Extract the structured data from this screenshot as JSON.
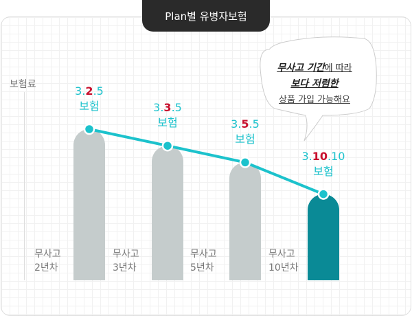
{
  "title": "Plan별 유병자보험",
  "ylabel": "보험료",
  "callout": {
    "line1_bold": "무사고 기간",
    "line1_rest": "에 따라",
    "line2": "보다 저렴한",
    "line3": "상품 가입 가능해요"
  },
  "colors": {
    "accent": "#1cc2cc",
    "highlight": "#c8102e",
    "bar": "#c5cccc",
    "bar_highlight": "#0a8a96"
  },
  "chart_data": {
    "type": "bar",
    "categories": [
      {
        "line1": "무사고",
        "line2": "2년차"
      },
      {
        "line1": "무사고",
        "line2": "3년차"
      },
      {
        "line1": "무사고",
        "line2": "5년차"
      },
      {
        "line1": "무사고",
        "line2": "10년차"
      }
    ],
    "values": [
      100,
      89,
      78,
      57
    ],
    "highlight_index": 3,
    "overlay_line": true,
    "data_labels": [
      {
        "pre": "3.",
        "hl": "2",
        "post": ".5",
        "sub": "보험"
      },
      {
        "pre": "3.",
        "hl": "3",
        "post": ".5",
        "sub": "보험"
      },
      {
        "pre": "3.",
        "hl": "5",
        "post": ".5",
        "sub": "보험"
      },
      {
        "pre": "3.",
        "hl": "10",
        "post": ".10",
        "sub": "보험"
      }
    ],
    "ylabel": "보험료",
    "grid": true
  }
}
